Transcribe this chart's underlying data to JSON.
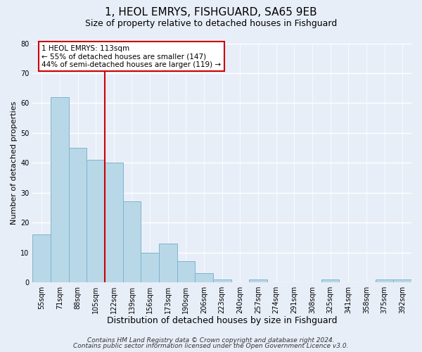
{
  "title": "1, HEOL EMRYS, FISHGUARD, SA65 9EB",
  "subtitle": "Size of property relative to detached houses in Fishguard",
  "xlabel": "Distribution of detached houses by size in Fishguard",
  "ylabel": "Number of detached properties",
  "bar_labels": [
    "55sqm",
    "71sqm",
    "88sqm",
    "105sqm",
    "122sqm",
    "139sqm",
    "156sqm",
    "173sqm",
    "190sqm",
    "206sqm",
    "223sqm",
    "240sqm",
    "257sqm",
    "274sqm",
    "291sqm",
    "308sqm",
    "325sqm",
    "341sqm",
    "358sqm",
    "375sqm",
    "392sqm"
  ],
  "bar_values": [
    16,
    62,
    45,
    41,
    40,
    27,
    10,
    13,
    7,
    3,
    1,
    0,
    1,
    0,
    0,
    0,
    1,
    0,
    0,
    1,
    1
  ],
  "bar_color": "#b8d8e8",
  "bar_edge_color": "#7fb3cc",
  "vline_x": 3.5,
  "vline_color": "#cc0000",
  "annotation_text": "1 HEOL EMRYS: 113sqm\n← 55% of detached houses are smaller (147)\n44% of semi-detached houses are larger (119) →",
  "annotation_box_color": "#ffffff",
  "annotation_box_edge": "#cc0000",
  "ylim": [
    0,
    80
  ],
  "yticks": [
    0,
    10,
    20,
    30,
    40,
    50,
    60,
    70,
    80
  ],
  "background_color": "#e8eef8",
  "footer_line1": "Contains HM Land Registry data © Crown copyright and database right 2024.",
  "footer_line2": "Contains public sector information licensed under the Open Government Licence v3.0.",
  "title_fontsize": 11,
  "subtitle_fontsize": 9,
  "xlabel_fontsize": 9,
  "ylabel_fontsize": 8,
  "tick_fontsize": 7,
  "footer_fontsize": 6.5,
  "annot_fontsize": 7.5
}
